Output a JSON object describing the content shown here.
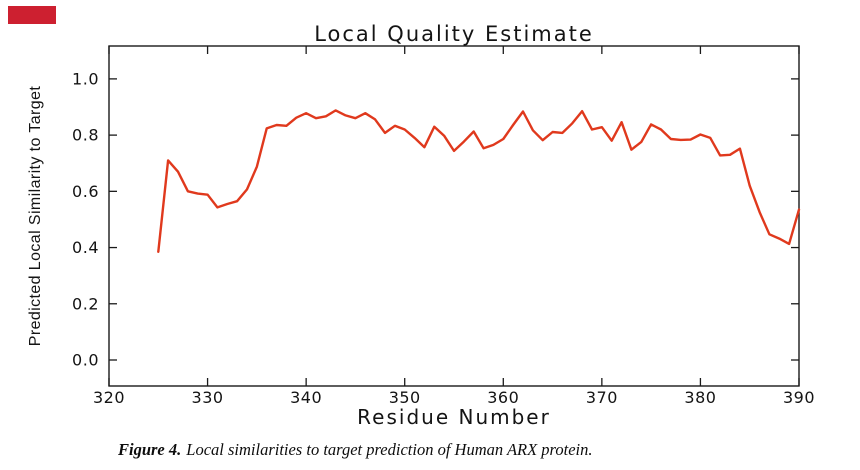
{
  "figure": {
    "marker_color": "#cd2030",
    "background": "#ffffff"
  },
  "chart_data": {
    "type": "line",
    "title": "Local Quality Estimate",
    "xlabel": "Residue Number",
    "ylabel": "Predicted Local Similarity to Target",
    "xlim": [
      320,
      390
    ],
    "ylim": [
      -0.0925,
      1.117
    ],
    "xticks": [
      320,
      330,
      340,
      350,
      360,
      370,
      380,
      390
    ],
    "yticks": [
      "0.0",
      "0.2",
      "0.4",
      "0.6",
      "0.8",
      "1.0"
    ],
    "grid": false,
    "legend": "none",
    "line_color": "#e0391d",
    "frame_color": "#1a1a1a",
    "series": [
      {
        "name": "predicted local similarity",
        "x": [
          325,
          326,
          327,
          328,
          329,
          330,
          331,
          332,
          333,
          334,
          335,
          336,
          337,
          338,
          339,
          340,
          341,
          342,
          343,
          344,
          345,
          346,
          347,
          348,
          349,
          350,
          351,
          352,
          353,
          354,
          355,
          356,
          357,
          358,
          359,
          360,
          361,
          362,
          363,
          364,
          365,
          366,
          367,
          368,
          369,
          370,
          371,
          372,
          373,
          374,
          375,
          376,
          377,
          378,
          379,
          380,
          381,
          382,
          383,
          384,
          385,
          386,
          387,
          388,
          389,
          390
        ],
        "y": [
          0.385,
          0.71,
          0.67,
          0.6,
          0.592,
          0.588,
          0.543,
          0.555,
          0.565,
          0.607,
          0.688,
          0.824,
          0.836,
          0.833,
          0.862,
          0.878,
          0.86,
          0.867,
          0.888,
          0.87,
          0.86,
          0.878,
          0.856,
          0.808,
          0.833,
          0.82,
          0.79,
          0.757,
          0.83,
          0.798,
          0.744,
          0.777,
          0.813,
          0.753,
          0.765,
          0.786,
          0.836,
          0.884,
          0.817,
          0.782,
          0.811,
          0.808,
          0.842,
          0.885,
          0.82,
          0.828,
          0.78,
          0.846,
          0.748,
          0.776,
          0.838,
          0.82,
          0.786,
          0.783,
          0.784,
          0.802,
          0.79,
          0.728,
          0.73,
          0.752,
          0.62,
          0.526,
          0.447,
          0.432,
          0.413,
          0.535
        ]
      }
    ]
  },
  "caption": {
    "label": "Figure 4.",
    "text": "Local similarities to target prediction of Human ARX protein."
  }
}
